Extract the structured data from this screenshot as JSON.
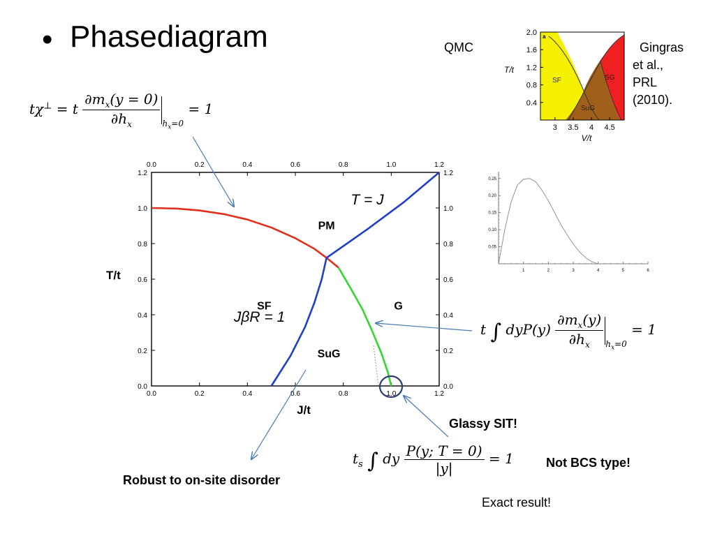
{
  "slide": {
    "bullet": "•",
    "title": "Phasediagram",
    "qmc_label": "QMC",
    "citation": [
      "Gingras",
      "et al.,",
      "PRL",
      "(2010)."
    ],
    "annotations": {
      "glassy_sit": "Glassy SIT!",
      "not_bcs": "Not BCS type!",
      "exact": "Exact  result!",
      "robust": "Robust to on-site disorder"
    },
    "equations": {
      "chi_lhs": "tχ",
      "chi_sup": "⊥",
      "chi_eq": " = t",
      "chi_num": "∂m",
      "chi_num_sub": "x",
      "chi_num_rest": "(y = 0)",
      "chi_den": "∂h",
      "chi_den_sub": "x",
      "chi_eval": "h",
      "chi_eval_sub": "x",
      "chi_eval_rest": "=0",
      "chi_rhs": " = 1",
      "glass_t": "t",
      "glass_int": "∫",
      "glass_body": "dyP(y)",
      "glass_num": "∂m",
      "glass_num_sub": "x",
      "glass_num_rest": "(y)",
      "glass_den": "∂h",
      "glass_den_sub": "x",
      "glass_eval": "h",
      "glass_eval_sub": "x",
      "glass_eval_rest": "=0",
      "glass_rhs": " = 1",
      "ts_t": "t",
      "ts_sub": "s",
      "ts_int": "∫",
      "ts_body": "dy",
      "ts_num": "P(y; T = 0)",
      "ts_den": "|y|",
      "ts_rhs": " = 1"
    }
  },
  "chart_data": [
    {
      "type": "line",
      "name": "main-phase-diagram",
      "xlabel": "J/t",
      "ylabel": "T/t",
      "xlim": [
        0.0,
        1.2
      ],
      "ylim": [
        0.0,
        1.2
      ],
      "xticks": [
        "0.0",
        "0.2",
        "0.4",
        "0.6",
        "0.8",
        "1.0",
        "1.2"
      ],
      "yticks": [
        "0.0",
        "0.2",
        "0.4",
        "0.6",
        "0.8",
        "1.0",
        "1.2"
      ],
      "phase_labels": [
        {
          "text": "PM",
          "x": 0.73,
          "y": 0.88
        },
        {
          "text": "SF",
          "x": 0.47,
          "y": 0.43
        },
        {
          "text": "G",
          "x": 1.03,
          "y": 0.43
        },
        {
          "text": "SuG",
          "x": 0.74,
          "y": 0.16
        }
      ],
      "formula_labels": [
        {
          "text": "T = J",
          "x": 0.9,
          "y": 1.02
        },
        {
          "text": "JβR = 1",
          "x": 0.45,
          "y": 0.36
        }
      ],
      "series": [
        {
          "color": "#e0301e",
          "x": [
            0.0,
            0.1,
            0.2,
            0.3,
            0.4,
            0.5,
            0.6,
            0.68,
            0.73,
            0.78
          ],
          "y": [
            1.0,
            0.997,
            0.986,
            0.966,
            0.935,
            0.89,
            0.83,
            0.77,
            0.72,
            0.665
          ]
        },
        {
          "color": "#1f3fc8",
          "x": [
            0.5,
            0.58,
            0.64,
            0.68,
            0.71,
            0.73
          ],
          "y": [
            0.0,
            0.17,
            0.33,
            0.47,
            0.6,
            0.72
          ]
        },
        {
          "color": "#1f3fc8",
          "x": [
            0.73,
            0.9,
            1.05,
            1.2
          ],
          "y": [
            0.72,
            0.88,
            1.03,
            1.2
          ]
        },
        {
          "color": "#33d633",
          "x": [
            0.78,
            0.83,
            0.88,
            0.92,
            0.96,
            0.985,
            1.0
          ],
          "y": [
            0.665,
            0.55,
            0.43,
            0.31,
            0.18,
            0.08,
            0.0
          ]
        }
      ]
    },
    {
      "type": "line",
      "name": "distribution-inset",
      "xticks": [
        "1",
        "2",
        "3",
        "4",
        "5",
        "6"
      ],
      "yticks": [
        "0.05",
        "0.10",
        "0.15",
        "0.20",
        "0.25"
      ],
      "xlim": [
        0,
        6
      ],
      "ylim": [
        0,
        0.27
      ],
      "series": [
        {
          "color": "#888888",
          "x": [
            0,
            0.25,
            0.5,
            0.75,
            1.0,
            1.25,
            1.5,
            1.75,
            2.0,
            2.25,
            2.5,
            2.75,
            3.0,
            3.25,
            3.5,
            3.75,
            4.0
          ],
          "y": [
            0.0,
            0.1,
            0.18,
            0.23,
            0.248,
            0.25,
            0.24,
            0.215,
            0.185,
            0.15,
            0.115,
            0.085,
            0.058,
            0.035,
            0.018,
            0.006,
            0.0
          ]
        }
      ]
    },
    {
      "type": "area",
      "name": "qmc-inset",
      "panel": "a",
      "xlabel": "V/t",
      "ylabel": "T/t",
      "xticks": [
        "3",
        "3.5",
        "4",
        "4.5"
      ],
      "yticks": [
        "0.4",
        "0.8",
        "1.2",
        "1.6",
        "2.0"
      ],
      "xlim": [
        2.6,
        4.9
      ],
      "ylim": [
        0.0,
        2.0
      ],
      "regions": [
        {
          "label": "SF",
          "color": "#f5f000"
        },
        {
          "label": "SuG",
          "color": "#a0601a"
        },
        {
          "label": "SG",
          "color": "#ee2020"
        }
      ]
    }
  ]
}
